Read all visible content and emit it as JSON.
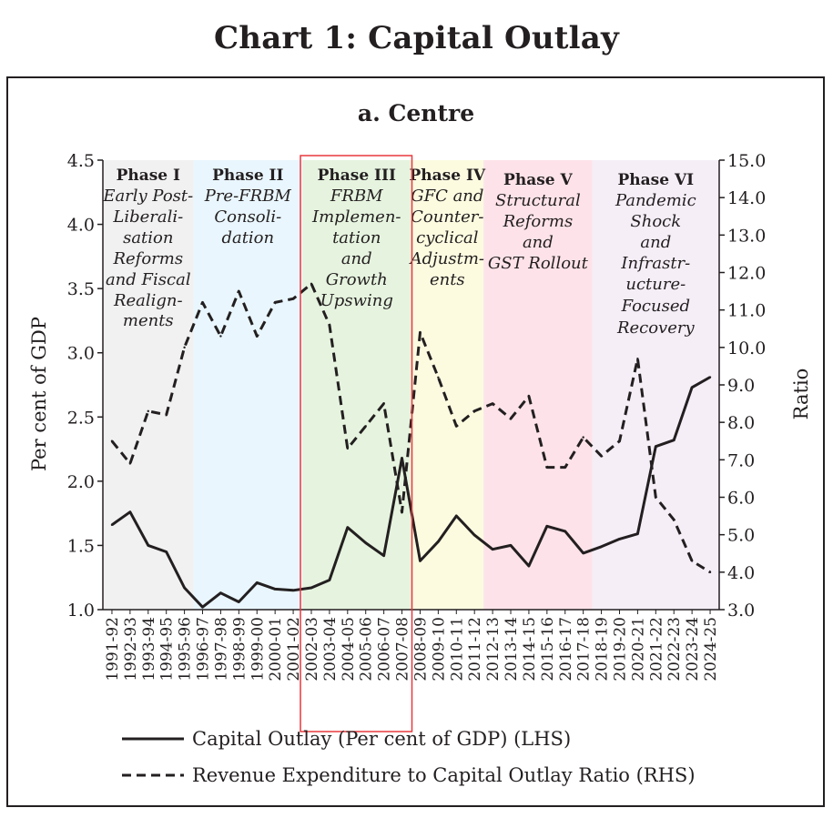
{
  "title": "Chart 1: Capital Outlay",
  "chart_data": {
    "type": "line",
    "subtitle": "a. Centre",
    "ylabel": "Per cent of GDP",
    "y2label": "Ratio",
    "ylim": [
      1.0,
      4.5
    ],
    "y_ticks": [
      "1.0",
      "1.5",
      "2.0",
      "2.5",
      "3.0",
      "3.5",
      "4.0",
      "4.5"
    ],
    "y2lim": [
      3.0,
      15.0
    ],
    "y2_ticks": [
      "3.0",
      "4.0",
      "5.0",
      "6.0",
      "7.0",
      "8.0",
      "9.0",
      "10.0",
      "11.0",
      "12.0",
      "13.0",
      "14.0",
      "15.0"
    ],
    "grid": false,
    "legend_position": "bottom",
    "categories": [
      "1991-92",
      "1992-93",
      "1993-94",
      "1994-95",
      "1995-96",
      "1996-97",
      "1997-98",
      "1998-99",
      "1999-00",
      "2000-01",
      "2001-02",
      "2002-03",
      "2003-04",
      "2004-05",
      "2005-06",
      "2006-07",
      "2007-08",
      "2008-09",
      "2009-10",
      "2010-11",
      "2011-12",
      "2012-13",
      "2013-14",
      "2014-15",
      "2015-16",
      "2016-17",
      "2017-18",
      "2018-19",
      "2019-20",
      "2020-21",
      "2021-22",
      "2022-23",
      "2023-24",
      "2024-25"
    ],
    "series": [
      {
        "name": "Capital Outlay (Per cent of GDP) (LHS)",
        "axis": "left",
        "style": "solid",
        "values": [
          1.66,
          1.76,
          1.5,
          1.45,
          1.17,
          1.02,
          1.13,
          1.06,
          1.21,
          1.16,
          1.15,
          1.17,
          1.23,
          1.64,
          1.52,
          1.42,
          2.18,
          1.38,
          1.53,
          1.73,
          1.58,
          1.47,
          1.5,
          1.34,
          1.65,
          1.61,
          1.44,
          1.49,
          1.55,
          1.59,
          2.27,
          2.32,
          2.73,
          2.81
        ]
      },
      {
        "name": "Revenue Expenditure to Capital Outlay Ratio (RHS)",
        "axis": "right",
        "style": "dashed",
        "values": [
          7.5,
          6.9,
          8.3,
          8.2,
          10.0,
          11.2,
          10.3,
          11.5,
          10.3,
          11.2,
          11.3,
          11.7,
          10.6,
          7.3,
          7.9,
          8.5,
          5.6,
          10.4,
          9.2,
          7.9,
          8.3,
          8.5,
          8.1,
          8.7,
          6.8,
          6.8,
          7.6,
          7.1,
          7.5,
          9.7,
          6.0,
          5.4,
          4.3,
          4.0
        ]
      }
    ],
    "phases": [
      {
        "title": "Phase I",
        "desc": [
          "Early Post-",
          "Liberali-",
          "sation",
          "Reforms",
          "and Fiscal",
          "Realign-",
          "ments"
        ],
        "color": "#f1f1f2"
      },
      {
        "title": "Phase II",
        "desc": [
          "Pre-FRBM",
          "Consoli-",
          "dation"
        ],
        "color": "#e9f6fd"
      },
      {
        "title": "Phase III",
        "desc": [
          "FRBM",
          "Implemen-",
          "tation",
          "and",
          "Growth",
          "Upswing"
        ],
        "color": "#e6f4df"
      },
      {
        "title": "Phase IV",
        "desc": [
          "GFC and",
          "Counter-",
          "cyclical",
          "Adjustm-",
          "ents"
        ],
        "color": "#fcfbe0"
      },
      {
        "title": "Phase V",
        "desc": [
          "Structural",
          "Reforms",
          "and",
          "GST Rollout"
        ],
        "color": "#fde3e9"
      },
      {
        "title": "Phase VI",
        "desc": [
          "Pandemic",
          "Shock",
          "and",
          "Infrastr-",
          "ucture-",
          "Focused",
          "Recovery"
        ],
        "color": "#f5eef7"
      }
    ],
    "highlight_color": "#e8383d"
  }
}
